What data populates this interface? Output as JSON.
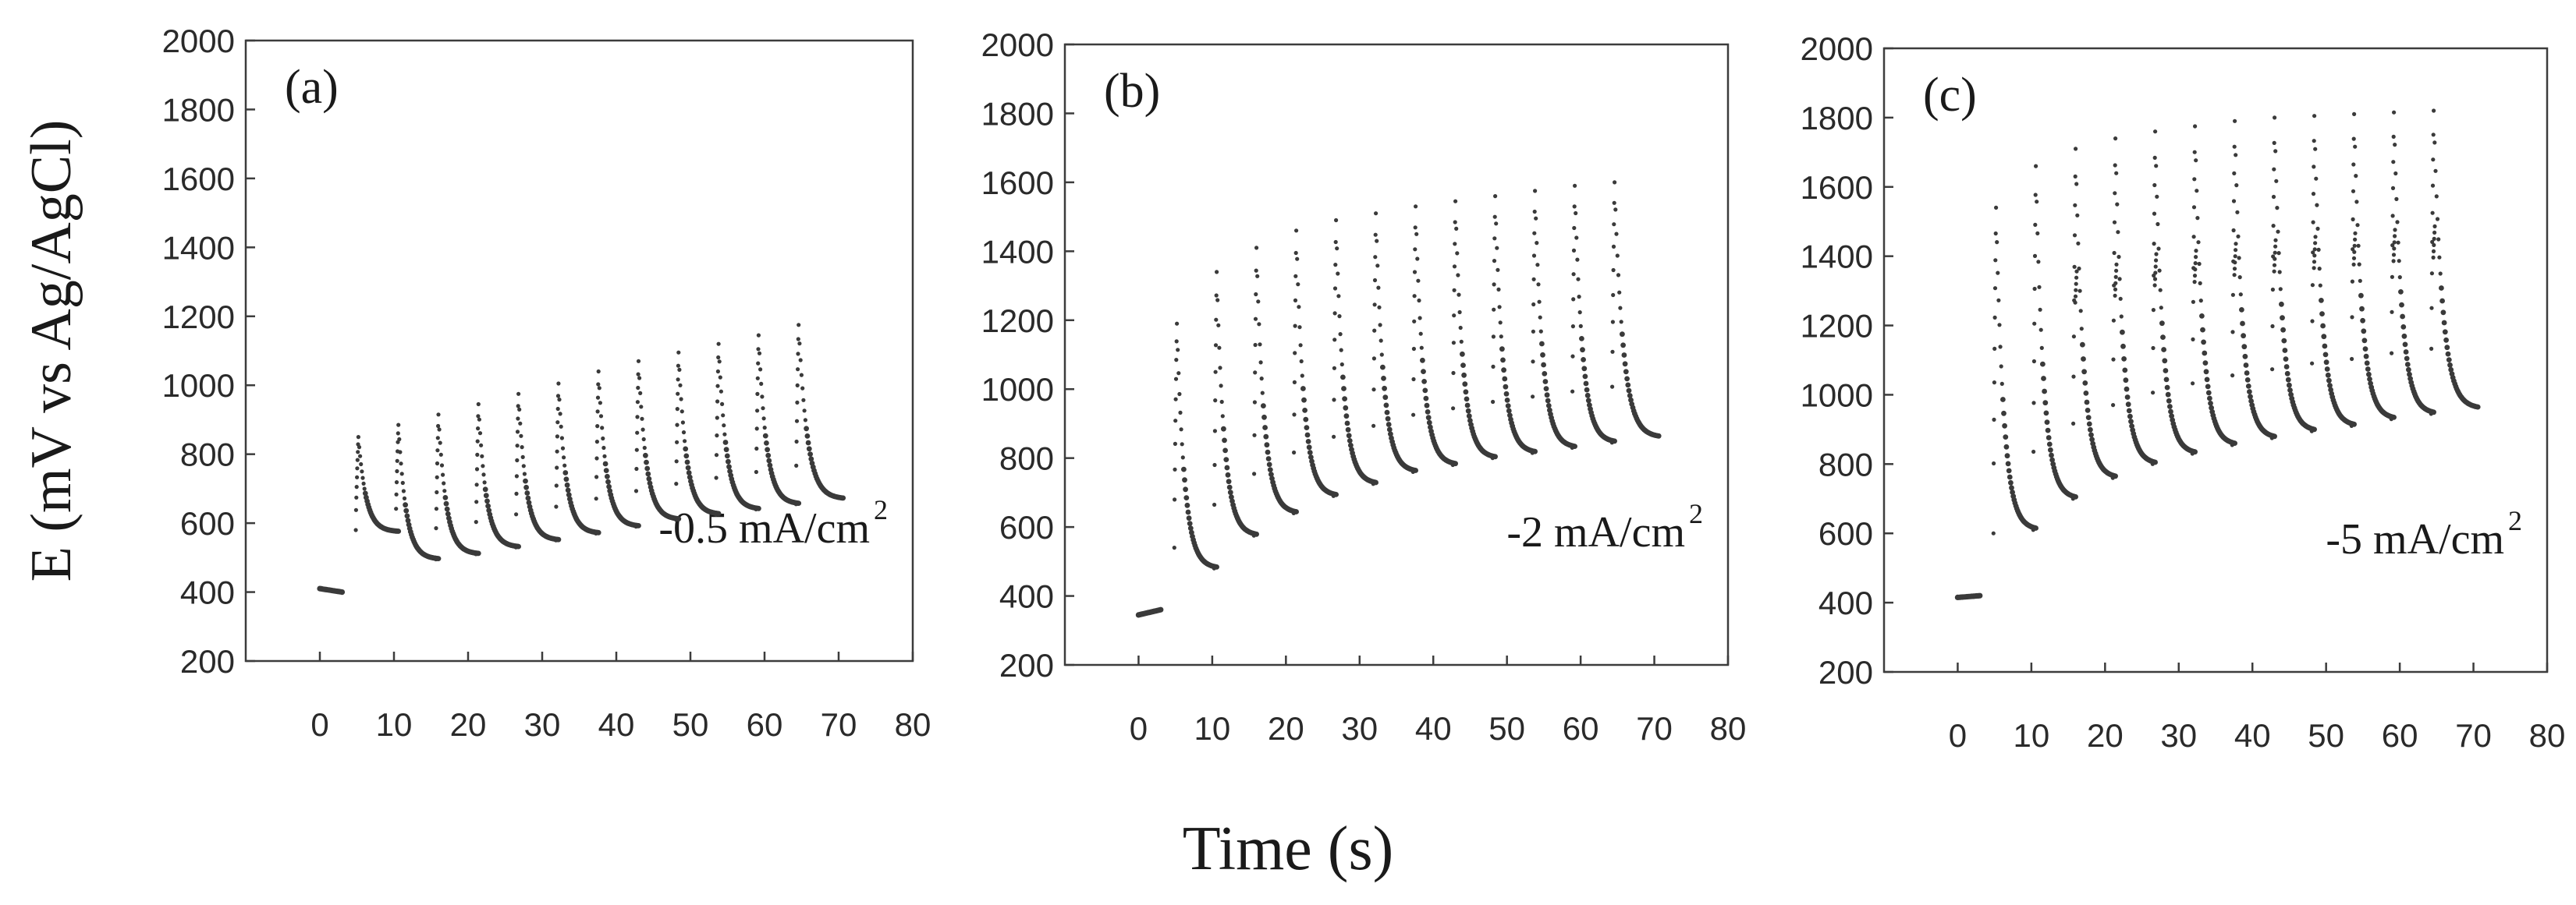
{
  "figure": {
    "ylabel": "E (mV vs Ag/AgCl)",
    "xlabel": "Time (s)"
  },
  "chart_data": [
    {
      "type": "scatter",
      "panel_label": "(a)",
      "annotation": {
        "text": "-0.5 mA/cm",
        "sup": "2"
      },
      "xlim": [
        -10,
        80
      ],
      "ylim": [
        200,
        2000
      ],
      "xticks": [
        0,
        10,
        20,
        30,
        40,
        50,
        60,
        70,
        80
      ],
      "yticks": [
        200,
        400,
        600,
        800,
        1000,
        1200,
        1400,
        1600,
        1800,
        2000
      ],
      "rest": {
        "t_start": 0,
        "t_end": 3,
        "E_start": 410,
        "E_end": 400
      },
      "pulse_times": [
        5.2,
        10.6,
        16.0,
        21.4,
        26.8,
        32.2,
        37.6,
        43.0,
        48.4,
        53.8,
        59.2,
        64.6
      ],
      "relax_duration": 5.4,
      "relax_final_duration": 6.0,
      "peaks": [
        850,
        885,
        915,
        945,
        975,
        1005,
        1040,
        1070,
        1095,
        1120,
        1145,
        1175
      ],
      "secondary": [],
      "minima": [
        575,
        495,
        510,
        530,
        550,
        570,
        590,
        610,
        625,
        640,
        655,
        670
      ]
    },
    {
      "type": "scatter",
      "panel_label": "(b)",
      "annotation": {
        "text": "-2 mA/cm",
        "sup": "2"
      },
      "xlim": [
        -10,
        80
      ],
      "ylim": [
        200,
        2000
      ],
      "xticks": [
        0,
        10,
        20,
        30,
        40,
        50,
        60,
        70,
        80
      ],
      "yticks": [
        200,
        400,
        600,
        800,
        1000,
        1200,
        1400,
        1600,
        1800,
        2000
      ],
      "rest": {
        "t_start": 0,
        "t_end": 3,
        "E_start": 345,
        "E_end": 360
      },
      "pulse_times": [
        5.2,
        10.6,
        16.0,
        21.4,
        26.8,
        32.2,
        37.6,
        43.0,
        48.4,
        53.8,
        59.2,
        64.6
      ],
      "relax_duration": 5.4,
      "relax_final_duration": 6.0,
      "peaks": [
        1190,
        1340,
        1410,
        1460,
        1490,
        1510,
        1530,
        1545,
        1560,
        1575,
        1590,
        1600
      ],
      "secondary": [],
      "minima": [
        480,
        575,
        640,
        690,
        725,
        760,
        780,
        800,
        815,
        830,
        845,
        860
      ]
    },
    {
      "type": "scatter",
      "panel_label": "(c)",
      "annotation": {
        "text": "-5 mA/cm",
        "sup": "2"
      },
      "xlim": [
        -10,
        80
      ],
      "ylim": [
        200,
        2000
      ],
      "xticks": [
        0,
        10,
        20,
        30,
        40,
        50,
        60,
        70,
        80
      ],
      "yticks": [
        200,
        400,
        600,
        800,
        1000,
        1200,
        1400,
        1600,
        1800,
        2000
      ],
      "rest": {
        "t_start": 0,
        "t_end": 3,
        "E_start": 415,
        "E_end": 420
      },
      "pulse_times": [
        5.2,
        10.6,
        16.0,
        21.4,
        26.8,
        32.2,
        37.6,
        43.0,
        48.4,
        53.8,
        59.2,
        64.6
      ],
      "relax_duration": 5.4,
      "relax_final_duration": 6.0,
      "peaks": [
        1540,
        1660,
        1710,
        1740,
        1760,
        1775,
        1790,
        1800,
        1805,
        1810,
        1815,
        1820
      ],
      "secondary": [
        0,
        0,
        1320,
        1340,
        1370,
        1380,
        1400,
        1410,
        1420,
        1430,
        1440,
        1450
      ],
      "minima": [
        610,
        700,
        760,
        800,
        830,
        855,
        875,
        895,
        910,
        930,
        945,
        960
      ]
    }
  ]
}
